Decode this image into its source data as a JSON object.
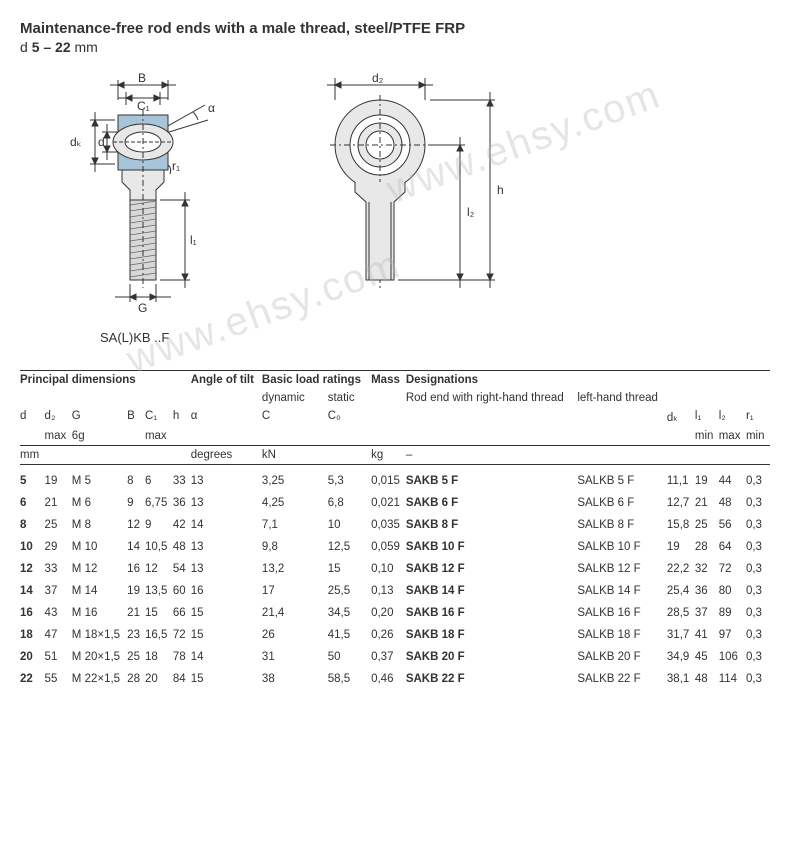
{
  "header": {
    "title": "Maintenance-free rod ends with a male thread, steel/PTFE FRP",
    "subtitle_prefix": "d ",
    "subtitle_range": "5 – 22",
    "subtitle_unit": " mm"
  },
  "diagram": {
    "caption": "SA(L)KB ..F",
    "labels": {
      "B": "B",
      "C1": "C₁",
      "alpha": "α",
      "dk": "dₖ",
      "d": "d",
      "r1": "r₁",
      "l1": "l₁",
      "G": "G",
      "d2": "d₂",
      "l2": "l₂",
      "h": "h"
    },
    "colors": {
      "stroke": "#333333",
      "fill_body": "#e8e8e8",
      "fill_ring": "#a8c4d8",
      "fill_shaft": "#d8d8d8"
    }
  },
  "watermark": "www.ehsy.com",
  "table": {
    "group_headers": {
      "principal": "Principal dimensions",
      "angle": "Angle of tilt",
      "basic": "Basic load ratings",
      "dynamic": "dynamic",
      "static": "static",
      "mass": "Mass",
      "designations": "Designations",
      "rh": "Rod end with right-hand thread",
      "lh": "left-hand thread"
    },
    "col_headers": {
      "d": "d",
      "d2": "d₂",
      "d2sub": "max",
      "G": "G",
      "Gsub": "6g",
      "B": "B",
      "C1": "C₁",
      "C1sub": "max",
      "h": "h",
      "alpha": "α",
      "C": "C",
      "C0": "C₀",
      "dk": "dₖ",
      "l1": "l₁",
      "l1sub": "min",
      "l2": "l₂",
      "l2sub": "max",
      "r1": "r₁",
      "r1sub": "min"
    },
    "unit_row": {
      "mm": "mm",
      "degrees": "degrees",
      "kN": "kN",
      "kg": "kg",
      "dash": "–"
    },
    "rows": [
      {
        "d": "5",
        "d2": "19",
        "G": "M 5",
        "B": "8",
        "C1": "6",
        "h": "33",
        "a": "13",
        "C": "3,25",
        "C0": "5,3",
        "m": "0,015",
        "rh": "SAKB 5 F",
        "lh": "SALKB 5 F",
        "dk": "11,1",
        "l1": "19",
        "l2": "44",
        "r1": "0,3"
      },
      {
        "d": "6",
        "d2": "21",
        "G": "M 6",
        "B": "9",
        "C1": "6,75",
        "h": "36",
        "a": "13",
        "C": "4,25",
        "C0": "6,8",
        "m": "0,021",
        "rh": "SAKB 6 F",
        "lh": "SALKB 6 F",
        "dk": "12,7",
        "l1": "21",
        "l2": "48",
        "r1": "0,3"
      },
      {
        "d": "8",
        "d2": "25",
        "G": "M 8",
        "B": "12",
        "C1": "9",
        "h": "42",
        "a": "14",
        "C": "7,1",
        "C0": "10",
        "m": "0,035",
        "rh": "SAKB 8 F",
        "lh": "SALKB 8 F",
        "dk": "15,8",
        "l1": "25",
        "l2": "56",
        "r1": "0,3"
      },
      {
        "d": "10",
        "d2": "29",
        "G": "M 10",
        "B": "14",
        "C1": "10,5",
        "h": "48",
        "a": "13",
        "C": "9,8",
        "C0": "12,5",
        "m": "0,059",
        "rh": "SAKB 10 F",
        "lh": "SALKB 10 F",
        "dk": "19",
        "l1": "28",
        "l2": "64",
        "r1": "0,3"
      },
      {
        "d": "12",
        "d2": "33",
        "G": "M 12",
        "B": "16",
        "C1": "12",
        "h": "54",
        "a": "13",
        "C": "13,2",
        "C0": "15",
        "m": "0,10",
        "rh": "SAKB 12 F",
        "lh": "SALKB 12 F",
        "dk": "22,2",
        "l1": "32",
        "l2": "72",
        "r1": "0,3"
      },
      {
        "d": "14",
        "d2": "37",
        "G": "M 14",
        "B": "19",
        "C1": "13,5",
        "h": "60",
        "a": "16",
        "C": "17",
        "C0": "25,5",
        "m": "0,13",
        "rh": "SAKB 14 F",
        "lh": "SALKB 14 F",
        "dk": "25,4",
        "l1": "36",
        "l2": "80",
        "r1": "0,3"
      },
      {
        "d": "16",
        "d2": "43",
        "G": "M 16",
        "B": "21",
        "C1": "15",
        "h": "66",
        "a": "15",
        "C": "21,4",
        "C0": "34,5",
        "m": "0,20",
        "rh": "SAKB 16 F",
        "lh": "SALKB 16 F",
        "dk": "28,5",
        "l1": "37",
        "l2": "89",
        "r1": "0,3"
      },
      {
        "d": "18",
        "d2": "47",
        "G": "M 18×1,5",
        "B": "23",
        "C1": "16,5",
        "h": "72",
        "a": "15",
        "C": "26",
        "C0": "41,5",
        "m": "0,26",
        "rh": "SAKB 18 F",
        "lh": "SALKB 18 F",
        "dk": "31,7",
        "l1": "41",
        "l2": "97",
        "r1": "0,3"
      },
      {
        "d": "20",
        "d2": "51",
        "G": "M 20×1,5",
        "B": "25",
        "C1": "18",
        "h": "78",
        "a": "14",
        "C": "31",
        "C0": "50",
        "m": "0,37",
        "rh": "SAKB 20 F",
        "lh": "SALKB 20 F",
        "dk": "34,9",
        "l1": "45",
        "l2": "106",
        "r1": "0,3"
      },
      {
        "d": "22",
        "d2": "55",
        "G": "M 22×1,5",
        "B": "28",
        "C1": "20",
        "h": "84",
        "a": "15",
        "C": "38",
        "C0": "58,5",
        "m": "0,46",
        "rh": "SAKB 22 F",
        "lh": "SALKB 22 F",
        "dk": "38,1",
        "l1": "48",
        "l2": "114",
        "r1": "0,3"
      }
    ]
  }
}
